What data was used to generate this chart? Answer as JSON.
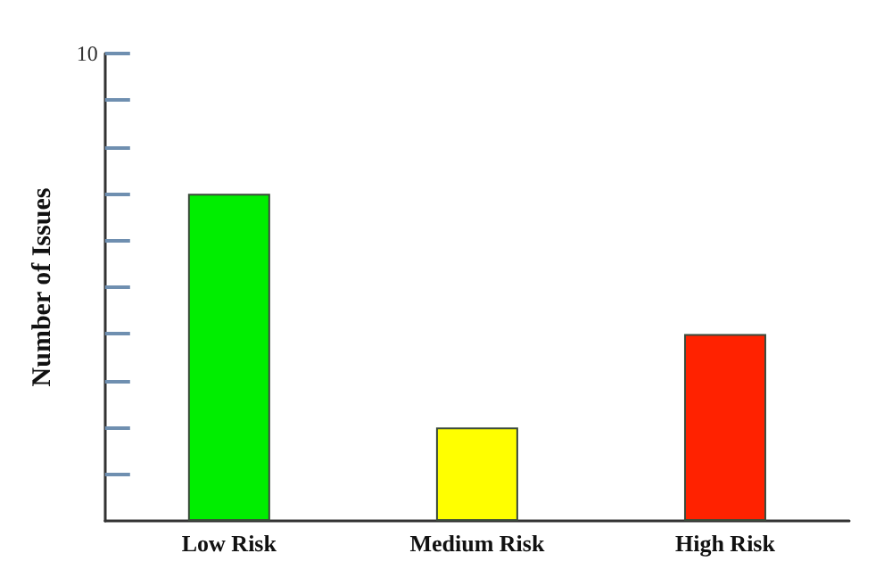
{
  "chart_data": {
    "type": "bar",
    "ylabel": "Number of Issues",
    "categories": [
      "Low Risk",
      "Medium Risk",
      "High Risk"
    ],
    "values": [
      7,
      2,
      4
    ],
    "colors": [
      "#00ee00",
      "#ffff00",
      "#ff2200"
    ],
    "ylim": [
      0,
      10
    ],
    "yticks": [
      {
        "value": 1,
        "label": null
      },
      {
        "value": 2,
        "label": null
      },
      {
        "value": 3,
        "label": null
      },
      {
        "value": 4,
        "label": null
      },
      {
        "value": 5,
        "label": null
      },
      {
        "value": 6,
        "label": null
      },
      {
        "value": 7,
        "label": null
      },
      {
        "value": 8,
        "label": null
      },
      {
        "value": 9,
        "label": null
      },
      10
    ],
    "grid": false
  }
}
